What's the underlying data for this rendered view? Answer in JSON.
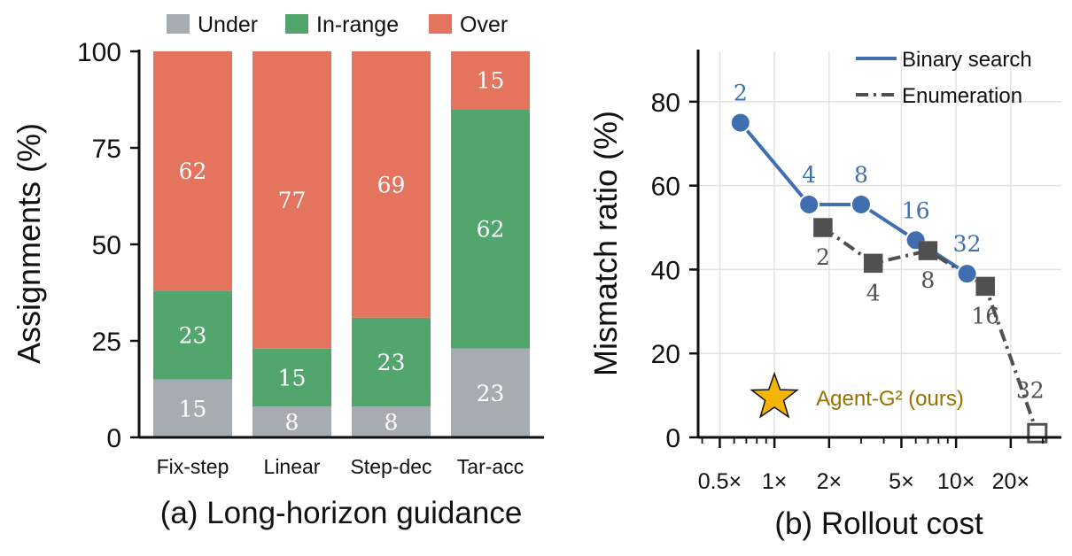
{
  "chart_data": [
    {
      "type": "bar",
      "stacked": true,
      "caption": "(a) Long-horizon guidance",
      "xlabel": "",
      "ylabel": "Assignments (%)",
      "ylim": [
        0,
        100
      ],
      "yticks": [
        "0",
        "25",
        "50",
        "75",
        "100"
      ],
      "categories": [
        "Fix-step",
        "Linear",
        "Step-dec",
        "Tar-acc"
      ],
      "legend": {
        "placement": "top",
        "entries": [
          "Under",
          "In-range",
          "Over"
        ]
      },
      "series": [
        {
          "name": "Under",
          "color": "#a7abb2",
          "values": [
            15,
            8,
            8,
            23
          ]
        },
        {
          "name": "In-range",
          "color": "#52a56d",
          "values": [
            23,
            15,
            23,
            62
          ]
        },
        {
          "name": "Over",
          "color": "#e4745e",
          "values": [
            62,
            77,
            69,
            15
          ]
        }
      ]
    },
    {
      "type": "line",
      "caption": "(b) Rollout cost",
      "xlabel": "",
      "ylabel": "Mismatch ratio (%)",
      "xscale": "log",
      "xlim": [
        0.38,
        38
      ],
      "ylim": [
        0,
        92
      ],
      "xticks": [
        "0.5×",
        "1×",
        "2×",
        "5×",
        "10×",
        "20×"
      ],
      "yticks": [
        "0",
        "20",
        "40",
        "60",
        "80"
      ],
      "grid": true,
      "legend": {
        "placement": "top-right",
        "entries": [
          "Binary search",
          "Enumeration"
        ]
      },
      "series": [
        {
          "name": "Binary search",
          "color": "#3f6fb0",
          "style": "solid",
          "marker": "circle",
          "x": [
            0.65,
            1.55,
            3.0,
            6.0,
            11.5
          ],
          "y": [
            75,
            55.5,
            55.5,
            47,
            39
          ],
          "labels": [
            "2",
            "4",
            "8",
            "16",
            "32"
          ]
        },
        {
          "name": "Enumeration",
          "color": "#505050",
          "style": "dash-dot",
          "marker": "square",
          "x": [
            1.85,
            3.5,
            7.0,
            14.5,
            28
          ],
          "y": [
            50,
            41.5,
            44.5,
            36,
            1
          ],
          "labels": [
            "2",
            "4",
            "8",
            "16",
            "32"
          ]
        }
      ],
      "annotation": {
        "text": "Agent-G² (ours)",
        "x": 1.0,
        "y": 9.5,
        "color": "#9a7000",
        "marker": "star",
        "marker_color": "#f5b400"
      }
    }
  ]
}
